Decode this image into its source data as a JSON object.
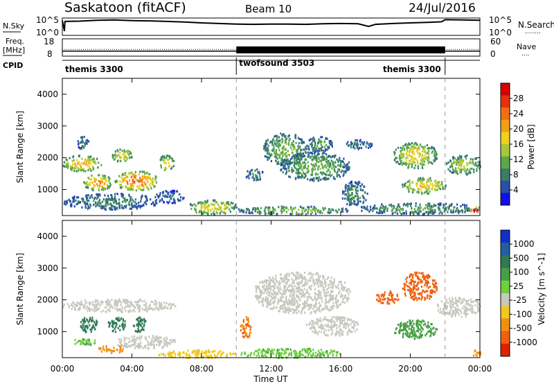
{
  "header": {
    "station": "Saskatoon (fitACF)",
    "beam": "Beam 10",
    "date": "24/Jul/2016"
  },
  "sky_panel": {
    "left_label": "N.Sky",
    "left_ticks": [
      "10^5",
      "10^0"
    ],
    "right_ticks": [
      "10^5",
      "10^0"
    ],
    "right_label": "N.Search",
    "right_label_dots": "........",
    "series": [
      {
        "t": 0.0,
        "v": 4.6
      },
      {
        "t": 0.12,
        "v": 1.0
      },
      {
        "t": 0.15,
        "v": 4.3
      },
      {
        "t": 1.0,
        "v": 4.4
      },
      {
        "t": 2.0,
        "v": 4.7
      },
      {
        "t": 3.0,
        "v": 4.8
      },
      {
        "t": 4.0,
        "v": 4.6
      },
      {
        "t": 5.0,
        "v": 4.5
      },
      {
        "t": 6.0,
        "v": 4.3
      },
      {
        "t": 7.0,
        "v": 4.1
      },
      {
        "t": 8.0,
        "v": 3.8
      },
      {
        "t": 9.0,
        "v": 3.6
      },
      {
        "t": 10.0,
        "v": 3.4
      },
      {
        "t": 11.0,
        "v": 3.3
      },
      {
        "t": 12.0,
        "v": 3.4
      },
      {
        "t": 13.0,
        "v": 3.4
      },
      {
        "t": 14.0,
        "v": 3.3
      },
      {
        "t": 15.0,
        "v": 3.5
      },
      {
        "t": 16.0,
        "v": 3.6
      },
      {
        "t": 17.0,
        "v": 3.5
      },
      {
        "t": 17.6,
        "v": 2.6
      },
      {
        "t": 18.0,
        "v": 3.3
      },
      {
        "t": 19.0,
        "v": 3.6
      },
      {
        "t": 20.0,
        "v": 3.8
      },
      {
        "t": 21.0,
        "v": 4.0
      },
      {
        "t": 21.8,
        "v": 4.2
      },
      {
        "t": 22.0,
        "v": 4.9
      },
      {
        "t": 23.0,
        "v": 4.8
      },
      {
        "t": 24.0,
        "v": 4.7
      }
    ]
  },
  "freq_panel": {
    "left_label_1": "Freq.",
    "left_label_2": "[MHz]",
    "left_ticks": [
      "18",
      "8"
    ],
    "right_ticks": [
      "60",
      "0"
    ],
    "right_label": "Nave",
    "right_label_dots": "....",
    "freq_mhz": 10.5,
    "nave_constant": 22,
    "nave_high_block": {
      "start": 10.0,
      "end": 22.0,
      "value": 60
    }
  },
  "cpid_panel": {
    "label": "CPID",
    "segments": [
      {
        "start": 0.0,
        "end": 10.0,
        "label": "themis 3300"
      },
      {
        "start": 10.0,
        "end": 22.0,
        "label": "twofsound 3503"
      },
      {
        "start": 22.0,
        "end": 24.0,
        "label": "themis 3300"
      }
    ]
  },
  "xaxis": {
    "label": "Time UT",
    "ticks": [
      "00:00",
      "04:00",
      "08:00",
      "12:00",
      "16:00",
      "20:00",
      "00:00"
    ]
  },
  "power_panel": {
    "ylabel": "Slant Range [km]",
    "yticks": [
      "1000",
      "2000",
      "3000",
      "4000"
    ],
    "colorbar_label": "Power [dB]",
    "colorbar_ticks": [
      "4",
      "8",
      "12",
      "16",
      "20",
      "24",
      "28"
    ],
    "colors": [
      "#1010e8",
      "#2850a8",
      "#3a7d6a",
      "#5aa84a",
      "#a8c83a",
      "#f0d020",
      "#f0a018",
      "#f07010",
      "#e83010",
      "#d80000"
    ]
  },
  "velocity_panel": {
    "ylabel": "Slant Range [km]",
    "yticks": [
      "1000",
      "2000",
      "3000",
      "4000"
    ],
    "colorbar_label": "Velocity [m s^-1]",
    "colorbar_ticks": [
      "1000",
      "500",
      "100",
      "25",
      "-25",
      "-100",
      "-500",
      "-1000"
    ],
    "colors": [
      "#1030c8",
      "#2060a0",
      "#2f7a55",
      "#45a045",
      "#70d040",
      "#c8c8c0",
      "#f0c820",
      "#f09010",
      "#f06010",
      "#e02000"
    ]
  },
  "chart_data": [
    {
      "type": "heatmap",
      "title": "Power",
      "x_range_hours": [
        0,
        24
      ],
      "y_range_km": [
        180,
        4500
      ],
      "value_label": "Power [dB]",
      "value_range": [
        0,
        30
      ],
      "blobs": [
        {
          "t": [
            0.0,
            2.2
          ],
          "r": [
            1600,
            2100
          ],
          "v": 16
        },
        {
          "t": [
            0.8,
            1.5
          ],
          "r": [
            2300,
            2700
          ],
          "v": 6
        },
        {
          "t": [
            1.2,
            2.8
          ],
          "r": [
            1000,
            1500
          ],
          "v": 18
        },
        {
          "t": [
            2.8,
            4.0
          ],
          "r": [
            1900,
            2300
          ],
          "v": 14
        },
        {
          "t": [
            3.0,
            5.5
          ],
          "r": [
            1000,
            1600
          ],
          "v": 20
        },
        {
          "t": [
            5.5,
            6.4
          ],
          "r": [
            1600,
            2100
          ],
          "v": 14
        },
        {
          "t": [
            0.0,
            5.5
          ],
          "r": [
            400,
            900
          ],
          "v": 6
        },
        {
          "t": [
            5.3,
            7.0
          ],
          "r": [
            600,
            1000
          ],
          "v": 5
        },
        {
          "t": [
            7.2,
            10.0
          ],
          "r": [
            250,
            700
          ],
          "v": 14
        },
        {
          "t": [
            10.0,
            16.5
          ],
          "r": [
            250,
            500
          ],
          "v": 10
        },
        {
          "t": [
            10.5,
            11.5
          ],
          "r": [
            1300,
            1700
          ],
          "v": 6
        },
        {
          "t": [
            11.5,
            14.0
          ],
          "r": [
            1800,
            2800
          ],
          "v": 10
        },
        {
          "t": [
            12.5,
            16.5
          ],
          "r": [
            1300,
            2200
          ],
          "v": 9
        },
        {
          "t": [
            14.0,
            15.5
          ],
          "r": [
            2200,
            2700
          ],
          "v": 8
        },
        {
          "t": [
            16.0,
            17.5
          ],
          "r": [
            500,
            1300
          ],
          "v": 7
        },
        {
          "t": [
            16.2,
            17.8
          ],
          "r": [
            2300,
            2600
          ],
          "v": 6
        },
        {
          "t": [
            19.0,
            21.5
          ],
          "r": [
            1700,
            2500
          ],
          "v": 14
        },
        {
          "t": [
            19.5,
            22.0
          ],
          "r": [
            900,
            1400
          ],
          "v": 15
        },
        {
          "t": [
            22.0,
            24.0
          ],
          "r": [
            1500,
            2100
          ],
          "v": 12
        },
        {
          "t": [
            17.0,
            24.0
          ],
          "r": [
            250,
            600
          ],
          "v": 8
        },
        {
          "t": [
            23.4,
            24.0
          ],
          "r": [
            250,
            500
          ],
          "v": 24
        }
      ]
    },
    {
      "type": "heatmap",
      "title": "Velocity",
      "x_range_hours": [
        0,
        24
      ],
      "y_range_km": [
        180,
        4500
      ],
      "value_label": "Velocity [m s^-1]",
      "value_range": [
        -1000,
        1000
      ],
      "blobs": [
        {
          "t": [
            0.0,
            6.5
          ],
          "r": [
            1650,
            2050
          ],
          "v": 0
        },
        {
          "t": [
            1.0,
            2.0
          ],
          "r": [
            1000,
            1500
          ],
          "v": 150
        },
        {
          "t": [
            2.6,
            3.6
          ],
          "r": [
            1000,
            1500
          ],
          "v": 200
        },
        {
          "t": [
            4.0,
            4.8
          ],
          "r": [
            1000,
            1500
          ],
          "v": 150
        },
        {
          "t": [
            0.5,
            2.0
          ],
          "r": [
            600,
            800
          ],
          "v": 60
        },
        {
          "t": [
            2.0,
            3.5
          ],
          "r": [
            350,
            600
          ],
          "v": -150
        },
        {
          "t": [
            3.0,
            6.5
          ],
          "r": [
            500,
            900
          ],
          "v": 0
        },
        {
          "t": [
            5.5,
            10.0
          ],
          "r": [
            200,
            450
          ],
          "v": -60
        },
        {
          "t": [
            10.0,
            16.0
          ],
          "r": [
            200,
            500
          ],
          "v": 50
        },
        {
          "t": [
            10.2,
            10.8
          ],
          "r": [
            800,
            1500
          ],
          "v": -300
        },
        {
          "t": [
            11.0,
            16.5
          ],
          "r": [
            1600,
            2900
          ],
          "v": 0
        },
        {
          "t": [
            14.0,
            17.0
          ],
          "r": [
            900,
            1500
          ],
          "v": 0
        },
        {
          "t": [
            18.0,
            19.3
          ],
          "r": [
            1900,
            2300
          ],
          "v": -400
        },
        {
          "t": [
            19.5,
            21.5
          ],
          "r": [
            2000,
            2900
          ],
          "v": -500
        },
        {
          "t": [
            19.0,
            21.5
          ],
          "r": [
            800,
            1400
          ],
          "v": 80
        },
        {
          "t": [
            21.5,
            24.0
          ],
          "r": [
            1500,
            2100
          ],
          "v": 0
        },
        {
          "t": [
            23.5,
            24.0
          ],
          "r": [
            250,
            450
          ],
          "v": -150
        }
      ]
    }
  ]
}
